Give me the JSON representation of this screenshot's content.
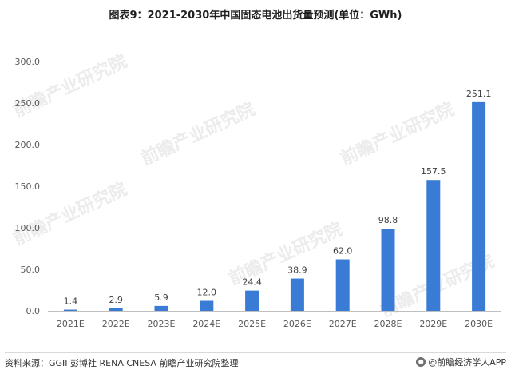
{
  "chart_data": {
    "type": "bar",
    "title": "图表9：2021-2030年中国固态电池出货量预测(单位：GWh)",
    "categories": [
      "2021E",
      "2022E",
      "2023E",
      "2024E",
      "2025E",
      "2026E",
      "2027E",
      "2028E",
      "2029E",
      "2030E"
    ],
    "values": [
      1.4,
      2.9,
      5.9,
      12.0,
      24.4,
      38.9,
      62.0,
      98.8,
      157.5,
      251.1
    ],
    "value_labels": [
      "1.4",
      "2.9",
      "5.9",
      "12.0",
      "24.4",
      "38.9",
      "62.0",
      "98.8",
      "157.5",
      "251.1"
    ],
    "yticks": [
      "0.0",
      "50.0",
      "100.0",
      "150.0",
      "200.0",
      "250.0",
      "300.0"
    ],
    "ylim": [
      0,
      300
    ],
    "bar_color": "#3a7bd5",
    "grid": false,
    "legend": "none"
  },
  "footer": {
    "source": "资料来源：GGII 彭博社 RENA CNESA 前瞻产业研究院整理",
    "brand": "@前瞻经济学人APP"
  },
  "watermark": "前瞻产业研究院"
}
